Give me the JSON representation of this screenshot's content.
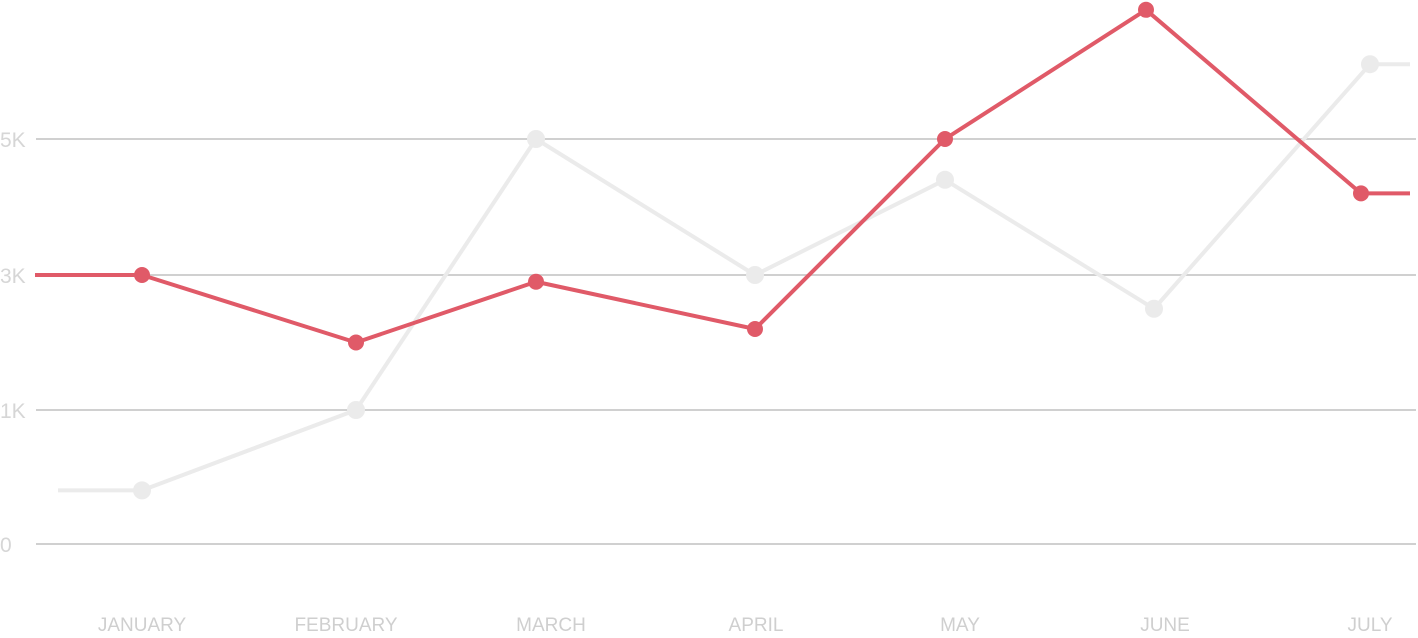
{
  "chart_data": {
    "type": "line",
    "title": "",
    "xlabel": "",
    "ylabel": "",
    "categories": [
      "JANUARY",
      "FEBRUARY",
      "MARCH",
      "APRIL",
      "MAY",
      "JUNE",
      "JULY"
    ],
    "y_ticks": [
      {
        "value": 0,
        "label": "0"
      },
      {
        "value": 1000,
        "label": "1K"
      },
      {
        "value": 3000,
        "label": "3K"
      },
      {
        "value": 5000,
        "label": "5K"
      }
    ],
    "grid": true,
    "legend": "none",
    "series": [
      {
        "color": "#e05a68",
        "values": [
          400,
          1000,
          5000,
          3000,
          4400,
          2500,
          6100
        ]
      },
      {
        "color": "#e05a68",
        "values": [
          3000,
          2000,
          2900,
          2200,
          5000,
          6900,
          4200
        ]
      }
    ],
    "colors": {
      "grey_series": "#ebebeb",
      "red_series": "#e05a68",
      "grid": "#d0d0d0",
      "tick_text": "#d6d6d6"
    }
  }
}
